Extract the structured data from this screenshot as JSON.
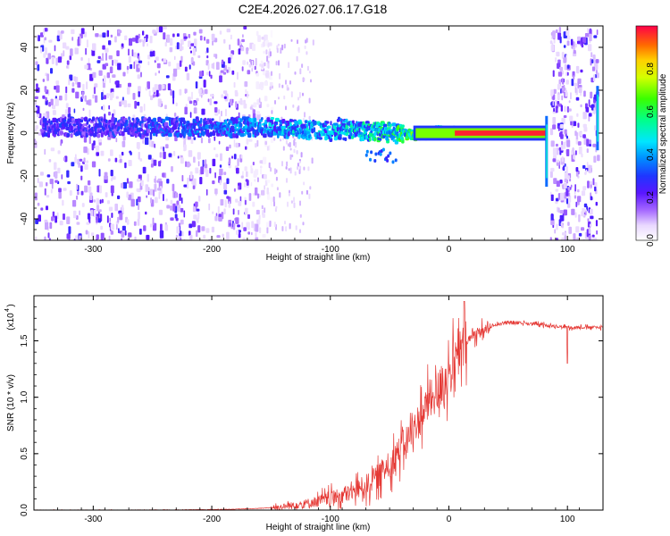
{
  "title": "C2E4.2026.027.06.17.G18",
  "chart_data": [
    {
      "type": "heatmap",
      "xlabel": "Height of straight line (km)",
      "ylabel": "Frequency (Hz)",
      "xlim": [
        -350,
        130
      ],
      "ylim": [
        -50,
        50
      ],
      "xticks": [
        -300,
        -200,
        -100,
        0,
        100
      ],
      "yticks": [
        -40,
        -20,
        0,
        20,
        40
      ],
      "colorbar": {
        "label": "Normalized spectral amplitude",
        "range": [
          0,
          1
        ],
        "ticks": [
          "0.0",
          "0.2",
          "0.4",
          "0.6",
          "0.8"
        ]
      },
      "ridge": {
        "x": [
          -345,
          -300,
          -250,
          -200,
          -160,
          -130,
          -100,
          -80,
          -60,
          -40,
          -30,
          -20,
          -10,
          0,
          10,
          30,
          50,
          70,
          82
        ],
        "frequency": [
          3,
          3,
          3,
          3,
          3,
          2,
          1,
          1,
          1,
          0,
          -1,
          0,
          1,
          1,
          0,
          0,
          0,
          0,
          0
        ],
        "peak_amplitude": [
          0.3,
          0.3,
          0.35,
          0.4,
          0.45,
          0.5,
          0.5,
          0.55,
          0.6,
          0.65,
          0.7,
          0.7,
          0.75,
          0.8,
          0.95,
          0.95,
          0.95,
          0.95,
          0.95
        ]
      },
      "noise_regions_x": [
        [
          -350,
          -150
        ],
        [
          85,
          125
        ]
      ]
    },
    {
      "type": "line",
      "xlabel": "Height of straight line (km)",
      "ylabel": "SNR (10 * v/v)",
      "scale_label": "(x10",
      "scale_exponent": "4",
      "xlim": [
        -350,
        130
      ],
      "ylim": [
        0,
        1.9
      ],
      "xticks": [
        -300,
        -200,
        -100,
        0,
        100
      ],
      "yticks": [
        "0.0",
        "0.5",
        "1.0",
        "1.5"
      ],
      "color": "#e53935",
      "series": [
        {
          "x": [
            -350,
            -250,
            -200,
            -180,
            -160,
            -140,
            -120,
            -100,
            -90,
            -80,
            -70,
            -60,
            -50,
            -40,
            -30,
            -20,
            -10,
            0,
            10,
            20,
            30,
            40,
            50,
            60,
            70,
            80,
            90,
            100,
            110,
            120,
            130
          ],
          "y": [
            0.0,
            0.0,
            0.005,
            0.008,
            0.015,
            0.03,
            0.06,
            0.1,
            0.13,
            0.17,
            0.22,
            0.3,
            0.4,
            0.55,
            0.7,
            0.9,
            1.05,
            1.2,
            1.4,
            1.55,
            1.6,
            1.65,
            1.66,
            1.66,
            1.65,
            1.64,
            1.63,
            1.62,
            1.62,
            1.62,
            1.62
          ]
        }
      ],
      "annotations": [
        {
          "x": 13,
          "y": 1.85
        },
        {
          "x": 100,
          "y": 1.3
        }
      ]
    }
  ]
}
